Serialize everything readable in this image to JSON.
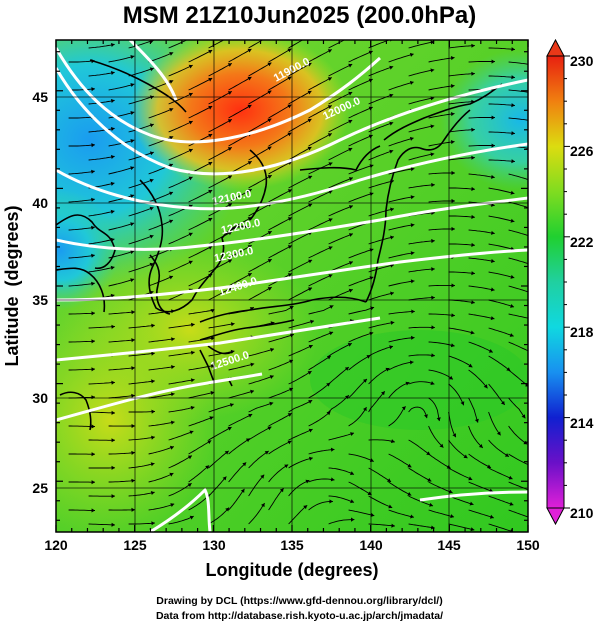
{
  "title": "MSM 21Z10Jun2025 (200.0hPa)",
  "chart_data": {
    "type": "heatmap",
    "xlabel": "Longitude (degrees)",
    "ylabel": "Latitude  (degrees)",
    "xlim": [
      120,
      150
    ],
    "ylim": [
      22.4,
      47.6
    ],
    "xticks": [
      "120",
      "125",
      "130",
      "135",
      "140",
      "145",
      "150"
    ],
    "yticks": [
      "25",
      "30",
      "35",
      "40",
      "45"
    ],
    "colorbar": {
      "min": 210,
      "max": 230,
      "ticks": [
        "210",
        "214",
        "218",
        "222",
        "226",
        "230"
      ]
    },
    "contour_labels": [
      "11900.0",
      "12000.0",
      "12100.0",
      "12200.0",
      "12300.0",
      "12400.0",
      "12500.0"
    ],
    "features": [
      "temperature shading",
      "streamlines",
      "geopotential height contours",
      "coastlines",
      "grid"
    ]
  },
  "credits": {
    "line1": "Drawing by DCL (https://www.gfd-dennou.org/library/dcl/)",
    "line2": "Data from http://database.rish.kyoto-u.ac.jp/arch/jmadata/"
  }
}
